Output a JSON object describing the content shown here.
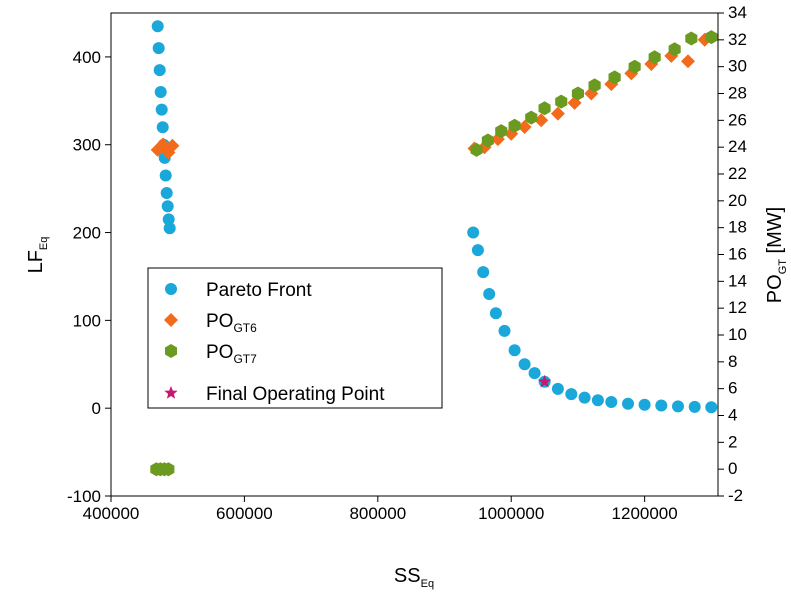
{
  "chart_data": {
    "type": "scatter",
    "xlabel": {
      "main": "SS",
      "sub": "Eq"
    },
    "ylabel_left": {
      "main": "LF",
      "sub": "Eq"
    },
    "ylabel_right": {
      "main": "PO",
      "sub": "GT",
      "unit": " [MW]"
    },
    "xlim": [
      400000,
      1310000
    ],
    "ylim_left": [
      -100,
      450
    ],
    "ylim_right": [
      -2,
      34
    ],
    "xticks": [
      400000,
      600000,
      800000,
      1000000,
      1200000
    ],
    "xtick_labels": [
      "400000",
      "600000",
      "800000",
      "1000000",
      "1200000"
    ],
    "yticks_left": [
      -100,
      0,
      100,
      200,
      300,
      400
    ],
    "ytick_labels_left": [
      "-100",
      "0",
      "100",
      "200",
      "300",
      "400"
    ],
    "yticks_right": [
      -2,
      0,
      2,
      4,
      6,
      8,
      10,
      12,
      14,
      16,
      18,
      20,
      22,
      24,
      26,
      28,
      30,
      32,
      34
    ],
    "ytick_labels_right": [
      "-2",
      "0",
      "2",
      "4",
      "6",
      "8",
      "10",
      "12",
      "14",
      "16",
      "18",
      "20",
      "22",
      "24",
      "26",
      "28",
      "30",
      "32",
      "34"
    ],
    "legend_position": "middle-left",
    "legend": [
      {
        "main": "Pareto Front",
        "sub": "",
        "marker": "circle",
        "color": "#1aa7d9"
      },
      {
        "main": "PO",
        "sub": "GT6",
        "marker": "diamond",
        "color": "#f26b1d"
      },
      {
        "main": "PO",
        "sub": "GT7",
        "marker": "hexagon",
        "color": "#6a9a1f"
      },
      {
        "main": "Final Operating Point",
        "sub": "",
        "marker": "star",
        "color": "#c8176e"
      }
    ],
    "series": [
      {
        "name": "Pareto Front",
        "axis": "left",
        "marker": "circle",
        "color": "#1aa7d9",
        "x": [
          470000,
          471500,
          473000,
          474500,
          476000,
          477500,
          479000,
          480500,
          482000,
          483500,
          485000,
          486500,
          488000,
          943000,
          950000,
          958000,
          967000,
          977000,
          990000,
          1005000,
          1020000,
          1035000,
          1050000,
          1070000,
          1090000,
          1110000,
          1130000,
          1150000,
          1175000,
          1200000,
          1225000,
          1250000,
          1275000,
          1300000
        ],
        "y": [
          435,
          410,
          385,
          360,
          340,
          320,
          300,
          285,
          265,
          245,
          230,
          215,
          205,
          200,
          180,
          155,
          130,
          108,
          88,
          66,
          50,
          40,
          30,
          22,
          16,
          12,
          9,
          7,
          5,
          4,
          3,
          2,
          1.5,
          1
        ]
      },
      {
        "name": "PO GT6",
        "axis": "right",
        "marker": "diamond",
        "color": "#f26b1d",
        "x": [
          470000,
          478000,
          486000,
          492000,
          945000,
          960000,
          980000,
          1000000,
          1020000,
          1045000,
          1070000,
          1095000,
          1120000,
          1150000,
          1180000,
          1210000,
          1240000,
          1265000,
          1290000
        ],
        "y": [
          23.8,
          24.2,
          23.6,
          24.1,
          23.9,
          24.0,
          24.6,
          25.0,
          25.5,
          26.0,
          26.5,
          27.3,
          28.0,
          28.7,
          29.5,
          30.2,
          30.8,
          30.4,
          32.0
        ]
      },
      {
        "name": "PO GT7",
        "axis": "right",
        "marker": "hexagon",
        "color": "#6a9a1f",
        "x": [
          468000,
          474000,
          480000,
          486000,
          948000,
          965000,
          985000,
          1005000,
          1030000,
          1050000,
          1075000,
          1100000,
          1125000,
          1155000,
          1185000,
          1215000,
          1245000,
          1270000,
          1300000
        ],
        "y": [
          0,
          0,
          0,
          0,
          23.8,
          24.5,
          25.2,
          25.6,
          26.2,
          26.9,
          27.4,
          28.0,
          28.6,
          29.2,
          30.0,
          30.7,
          31.3,
          32.1,
          32.2
        ]
      },
      {
        "name": "Final Operating Point",
        "axis": "left",
        "marker": "star",
        "color": "#c8176e",
        "x": [
          1050000
        ],
        "y": [
          30
        ]
      }
    ]
  }
}
